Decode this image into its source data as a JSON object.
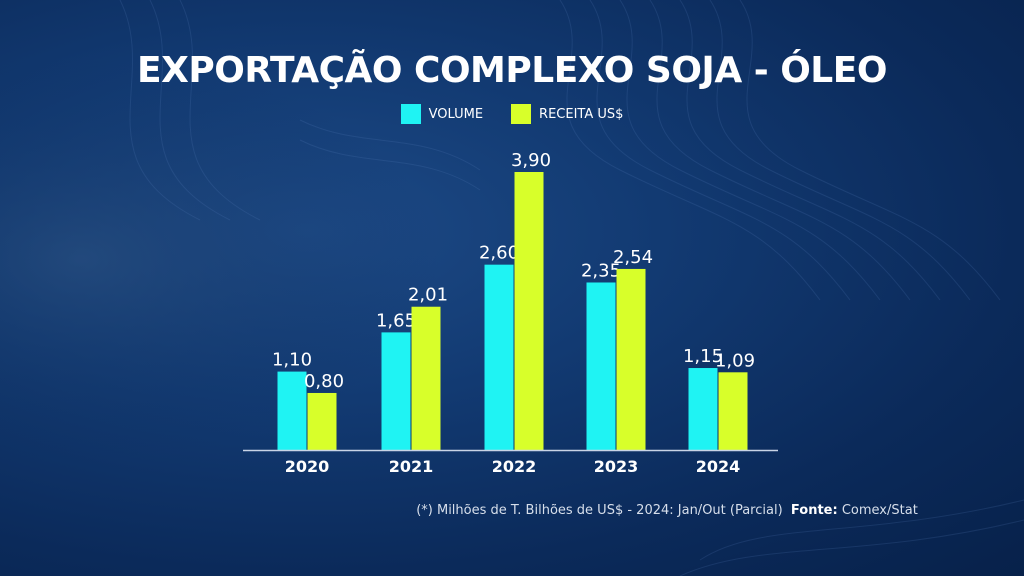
{
  "title": "EXPORTAÇÃO COMPLEXO SOJA - ÓLEO",
  "footnote": {
    "text": "(*) Milhões de T. Bilhões de US$ - 2024: Jan/Out (Parcial)",
    "source_label": "Fonte:",
    "source_value": "Comex/Stat"
  },
  "colors": {
    "volume": "#1ff3f3",
    "receita": "#d8ff2a",
    "background": "#0b2a5a"
  },
  "chart_data": {
    "type": "bar",
    "title": "EXPORTAÇÃO COMPLEXO SOJA - ÓLEO",
    "categories": [
      "2020",
      "2021",
      "2022",
      "2023",
      "2024"
    ],
    "series": [
      {
        "name": "VOLUME",
        "values": [
          1.1,
          1.65,
          2.6,
          2.35,
          1.15
        ],
        "labels": [
          "1,10",
          "1,65",
          "2,60",
          "2,35",
          "1,15"
        ]
      },
      {
        "name": "RECEITA US$",
        "values": [
          0.8,
          2.01,
          3.9,
          2.54,
          1.09
        ],
        "labels": [
          "0,80",
          "2,01",
          "3,90",
          "2,54",
          "1,09"
        ]
      }
    ],
    "xlabel": "",
    "ylabel": "",
    "ylim": [
      0,
      4
    ],
    "grid": false,
    "legend": "top-center"
  }
}
